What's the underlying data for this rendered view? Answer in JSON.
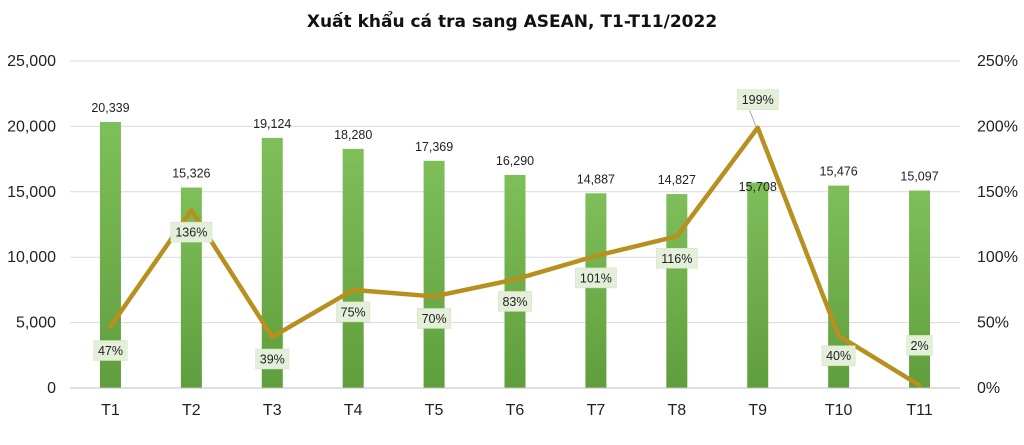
{
  "chart_data": {
    "type": "bar",
    "title": "Xuất khẩu cá tra sang ASEAN, T1-T11/2022",
    "categories": [
      "T1",
      "T2",
      "T3",
      "T4",
      "T5",
      "T6",
      "T7",
      "T8",
      "T9",
      "T10",
      "T11"
    ],
    "series": [
      {
        "type": "bar",
        "axis": "left",
        "values": [
          20339,
          15326,
          19124,
          18280,
          17369,
          16290,
          14887,
          14827,
          15708,
          15476,
          15097
        ],
        "labels": [
          "20,339",
          "15,326",
          "19,124",
          "18,280",
          "17,369",
          "16,290",
          "14,887",
          "14,827",
          "15,708",
          "15,476",
          "15,097"
        ],
        "color": "#6fae47"
      },
      {
        "type": "line",
        "axis": "right",
        "values": [
          47,
          136,
          39,
          75,
          70,
          83,
          101,
          116,
          199,
          40,
          2
        ],
        "labels": [
          "47%",
          "136%",
          "39%",
          "75%",
          "70%",
          "83%",
          "101%",
          "116%",
          "199%",
          "40%",
          "2%"
        ],
        "color": "#b8901f"
      }
    ],
    "y_left": {
      "min": 0,
      "max": 25000,
      "ticks": [
        "0",
        "5,000",
        "10,000",
        "15,000",
        "20,000",
        "25,000"
      ]
    },
    "y_right": {
      "min": 0,
      "max": 250,
      "ticks": [
        "0%",
        "50%",
        "100%",
        "150%",
        "200%",
        "250%"
      ]
    },
    "grid": true,
    "legend": "none"
  }
}
